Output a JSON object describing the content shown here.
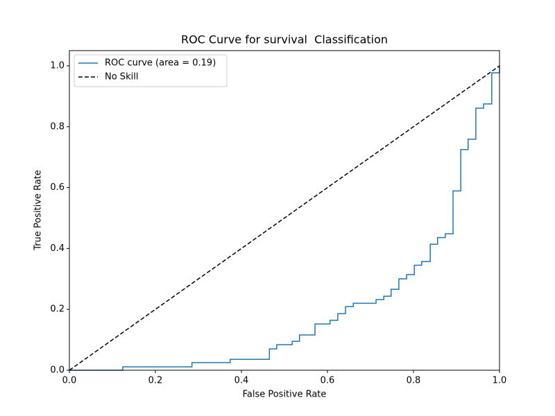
{
  "chart_data": {
    "type": "line",
    "title": "ROC Curve for survival  Classification",
    "xlabel": "False Positive Rate",
    "ylabel": "True Positive Rate",
    "xlim": [
      0,
      1
    ],
    "ylim": [
      0,
      1.05
    ],
    "xticks": [
      {
        "value": 0,
        "label": "0.0"
      },
      0.2,
      0.4,
      0.6,
      0.8,
      {
        "value": 1,
        "label": "1.0"
      }
    ],
    "yticks": [
      {
        "value": 0,
        "label": "0.0"
      },
      0.2,
      0.4,
      0.6,
      0.8,
      {
        "value": 1,
        "label": "1.0"
      }
    ],
    "legend": "upper left",
    "series": [
      {
        "name": "ROC curve (area = 0.19)",
        "color": "#1f77b4",
        "linestyle": "solid",
        "x": [
          0,
          0.124,
          0.124,
          0.285,
          0.285,
          0.374,
          0.374,
          0.465,
          0.465,
          0.482,
          0.482,
          0.518,
          0.518,
          0.535,
          0.535,
          0.571,
          0.571,
          0.606,
          0.606,
          0.624,
          0.624,
          0.642,
          0.642,
          0.66,
          0.66,
          0.713,
          0.713,
          0.731,
          0.731,
          0.748,
          0.748,
          0.766,
          0.766,
          0.784,
          0.784,
          0.802,
          0.802,
          0.819,
          0.819,
          0.839,
          0.839,
          0.856,
          0.856,
          0.874,
          0.874,
          0.892,
          0.892,
          0.91,
          0.91,
          0.927,
          0.927,
          0.945,
          0.945,
          0.963,
          0.963,
          0.982,
          0.982,
          1,
          1
        ],
        "y": [
          0,
          0,
          0.011,
          0.011,
          0.025,
          0.025,
          0.036,
          0.036,
          0.07,
          0.07,
          0.084,
          0.084,
          0.095,
          0.095,
          0.116,
          0.116,
          0.152,
          0.152,
          0.164,
          0.164,
          0.186,
          0.186,
          0.209,
          0.209,
          0.22,
          0.22,
          0.232,
          0.232,
          0.243,
          0.243,
          0.266,
          0.266,
          0.3,
          0.3,
          0.314,
          0.314,
          0.345,
          0.345,
          0.357,
          0.357,
          0.414,
          0.414,
          0.436,
          0.436,
          0.448,
          0.448,
          0.589,
          0.589,
          0.725,
          0.725,
          0.759,
          0.759,
          0.861,
          0.861,
          0.875,
          0.875,
          0.977,
          0.977,
          1
        ]
      },
      {
        "name": "No Skill",
        "color": "#000000",
        "linestyle": "dashed",
        "x": [
          0,
          1
        ],
        "y": [
          0,
          1
        ]
      }
    ]
  }
}
